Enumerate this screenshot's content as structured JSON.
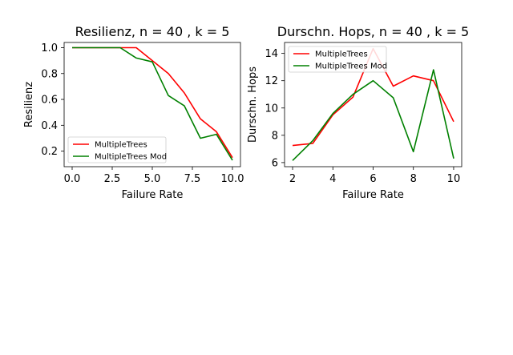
{
  "chart_data": [
    {
      "type": "line",
      "title": "Resilienz, n = 40 , k = 5",
      "xlabel": "Failure Rate",
      "ylabel": "Resilienz",
      "xlim": [
        -0.5,
        10.5
      ],
      "ylim": [
        0.08,
        1.04
      ],
      "xticks": [
        0.0,
        2.5,
        5.0,
        7.5,
        10.0
      ],
      "xtick_labels": [
        "0.0",
        "2.5",
        "5.0",
        "7.5",
        "10.0"
      ],
      "yticks": [
        0.2,
        0.4,
        0.6,
        0.8,
        1.0
      ],
      "ytick_labels": [
        "0.2",
        "0.4",
        "0.6",
        "0.8",
        "1.0"
      ],
      "legend": "lower-left",
      "grid": false,
      "series": [
        {
          "name": "MultipleTrees",
          "color": "#ff0000",
          "x": [
            0,
            1,
            2,
            3,
            4,
            5,
            6,
            7,
            8,
            9,
            10
          ],
          "y": [
            1.0,
            1.0,
            1.0,
            1.0,
            1.0,
            0.9,
            0.8,
            0.65,
            0.45,
            0.35,
            0.15
          ]
        },
        {
          "name": "MultipleTrees Mod",
          "color": "#008000",
          "x": [
            0,
            1,
            2,
            3,
            4,
            5,
            6,
            7,
            8,
            9,
            10
          ],
          "y": [
            1.0,
            1.0,
            1.0,
            1.0,
            0.92,
            0.89,
            0.63,
            0.55,
            0.3,
            0.33,
            0.13
          ]
        }
      ]
    },
    {
      "type": "line",
      "title": "Durschn. Hops, n = 40 , k = 5",
      "xlabel": "Failure Rate",
      "ylabel": "Durschn. Hops",
      "xlim": [
        1.6,
        10.4
      ],
      "ylim": [
        5.7,
        14.8
      ],
      "xticks": [
        2,
        4,
        6,
        8,
        10
      ],
      "xtick_labels": [
        "2",
        "4",
        "6",
        "8",
        "10"
      ],
      "yticks": [
        6,
        8,
        10,
        12,
        14
      ],
      "ytick_labels": [
        "6",
        "8",
        "10",
        "12",
        "14"
      ],
      "legend": "top-left",
      "grid": false,
      "series": [
        {
          "name": "MultipleTrees",
          "color": "#ff0000",
          "x": [
            2,
            3,
            4,
            5,
            6,
            7,
            8,
            9,
            10
          ],
          "y": [
            7.25,
            7.4,
            9.5,
            10.8,
            14.35,
            11.6,
            12.35,
            12.0,
            9.0
          ]
        },
        {
          "name": "MultipleTrees Mod",
          "color": "#008000",
          "x": [
            2,
            3,
            4,
            5,
            6,
            7,
            8,
            9,
            10
          ],
          "y": [
            6.15,
            7.6,
            9.6,
            11.0,
            12.0,
            10.75,
            6.8,
            12.8,
            6.3
          ]
        }
      ]
    }
  ]
}
